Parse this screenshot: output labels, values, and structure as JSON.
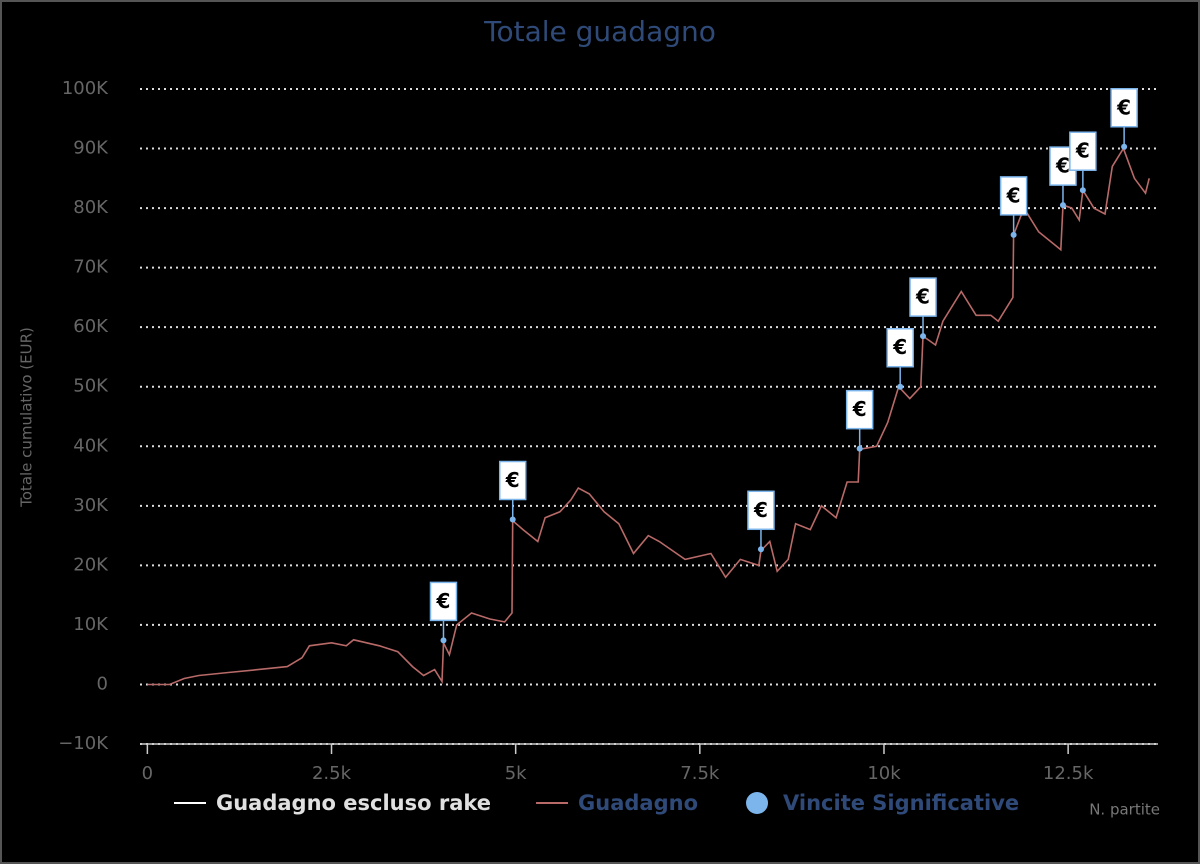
{
  "chart_data": {
    "type": "line",
    "title": "Totale guadagno",
    "y_axis_title": "Totale cumulativo (EUR)",
    "x_axis_title": "N. partite",
    "flag_label": "€",
    "grid": true,
    "xlim": [
      -100,
      13720
    ],
    "ylim": [
      -10000,
      100000
    ],
    "xticks": [
      0,
      {
        "value": 2500,
        "label": "2.5k"
      },
      {
        "value": 5000,
        "label": "5k"
      },
      {
        "value": 7500,
        "label": "7.5k"
      },
      {
        "value": 10000,
        "label": "10k"
      },
      {
        "value": 12500,
        "label": "12.5k"
      }
    ],
    "yticks": [
      {
        "value": -10000,
        "label": "−10K"
      },
      0,
      {
        "value": 10000,
        "label": "10K"
      },
      {
        "value": 20000,
        "label": "20K"
      },
      {
        "value": 30000,
        "label": "30K"
      },
      {
        "value": 40000,
        "label": "40K"
      },
      {
        "value": 50000,
        "label": "50K"
      },
      {
        "value": 60000,
        "label": "60K"
      },
      {
        "value": 70000,
        "label": "70K"
      },
      {
        "value": 80000,
        "label": "80K"
      },
      {
        "value": 90000,
        "label": "90K"
      },
      {
        "value": 100000,
        "label": "100K"
      }
    ],
    "x": [
      0,
      300,
      500,
      700,
      1100,
      1500,
      1900,
      2100,
      2200,
      2500,
      2700,
      2800,
      3150,
      3400,
      3600,
      3750,
      3900,
      4000,
      4020,
      4100,
      4200,
      4400,
      4650,
      4850,
      4950,
      4960,
      5100,
      5300,
      5400,
      5600,
      5750,
      5850,
      6000,
      6200,
      6400,
      6600,
      6800,
      6950,
      7300,
      7650,
      7850,
      8050,
      8300,
      8330,
      8450,
      8550,
      8700,
      8800,
      9000,
      9150,
      9350,
      9500,
      9650,
      9670,
      9900,
      10050,
      10200,
      10350,
      10500,
      10530,
      10700,
      10800,
      11050,
      11250,
      11450,
      11550,
      11750,
      11760,
      11900,
      12100,
      12300,
      12400,
      12430,
      12550,
      12650,
      12700,
      12850,
      13000,
      13100,
      13250,
      13400,
      13550,
      13600
    ],
    "series": [
      {
        "name": "Guadagno escluso rake",
        "color": "#ffffff",
        "values": [
          null,
          null,
          null,
          null,
          null,
          null,
          null,
          null,
          null,
          null,
          null,
          null,
          null,
          null,
          null,
          null,
          null,
          null,
          null,
          null,
          null,
          null,
          null,
          null,
          null,
          null,
          null,
          null,
          null,
          null,
          null,
          null,
          null,
          null,
          null,
          null,
          null,
          null,
          null,
          null,
          null,
          null,
          null,
          null,
          null,
          null,
          null,
          null,
          null,
          null,
          null,
          null,
          null,
          null,
          null,
          null,
          null,
          null,
          null,
          null,
          null,
          null,
          null,
          null,
          null,
          null,
          null,
          null,
          null,
          null,
          null,
          null,
          null,
          null,
          null,
          null,
          null,
          null,
          null,
          null,
          null,
          null,
          null
        ]
      },
      {
        "name": "Guadagno",
        "color": "#b86a68",
        "values": [
          0,
          0,
          1000,
          1500,
          2000,
          2500,
          3000,
          4500,
          6500,
          7000,
          6500,
          7500,
          6500,
          5500,
          3000,
          1500,
          2500,
          500,
          7000,
          5000,
          10000,
          12000,
          11000,
          10500,
          12000,
          27500,
          26000,
          24000,
          28000,
          29000,
          31000,
          33000,
          32000,
          29000,
          27000,
          22000,
          25000,
          24000,
          21000,
          22000,
          18000,
          21000,
          20000,
          22500,
          24000,
          19000,
          21000,
          27000,
          26000,
          30000,
          28000,
          34000,
          34000,
          39500,
          40000,
          44000,
          50000,
          48000,
          50000,
          58500,
          57000,
          61000,
          66000,
          62000,
          62000,
          61000,
          65000,
          75500,
          80000,
          76000,
          74000,
          73000,
          80500,
          80000,
          78000,
          83000,
          80000,
          79000,
          87000,
          90000,
          85000,
          82500,
          85000
        ]
      },
      {
        "name": "Vincite Significative",
        "type": "scatter",
        "color": "#7cb5ec",
        "x": [
          4020,
          4960,
          8330,
          9670,
          10220,
          10530,
          11760,
          12430,
          12700,
          13260
        ],
        "values": [
          7400,
          27700,
          22700,
          39600,
          50000,
          58500,
          75500,
          80500,
          83000,
          90300
        ]
      }
    ]
  }
}
